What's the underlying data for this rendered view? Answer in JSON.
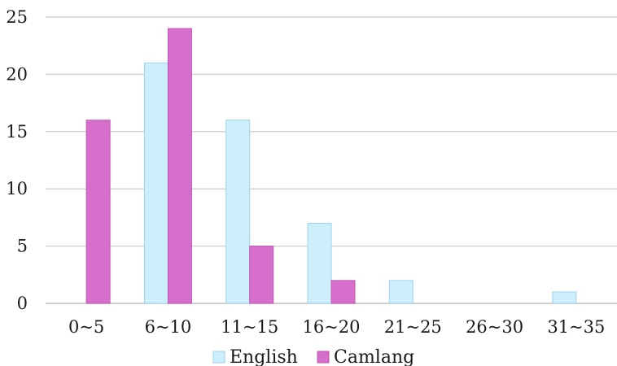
{
  "chart_data": {
    "type": "bar",
    "categories": [
      "0~5",
      "6~10",
      "11~15",
      "16~20",
      "21~25",
      "26~30",
      "31~35"
    ],
    "series": [
      {
        "name": "English",
        "values": [
          0,
          21,
          16,
          7,
          2,
          0,
          1
        ],
        "color": "#cdeefc",
        "stroke": "#9fd3ea"
      },
      {
        "name": "Camlang",
        "values": [
          16,
          24,
          5,
          2,
          0,
          0,
          0
        ],
        "color": "#d66fcb",
        "stroke": "#c155b6"
      }
    ],
    "ylim": [
      0,
      25
    ],
    "yticks": [
      0,
      5,
      10,
      15,
      20,
      25
    ],
    "grid": true,
    "legend": "bottom",
    "title": "",
    "xlabel": "",
    "ylabel": ""
  }
}
